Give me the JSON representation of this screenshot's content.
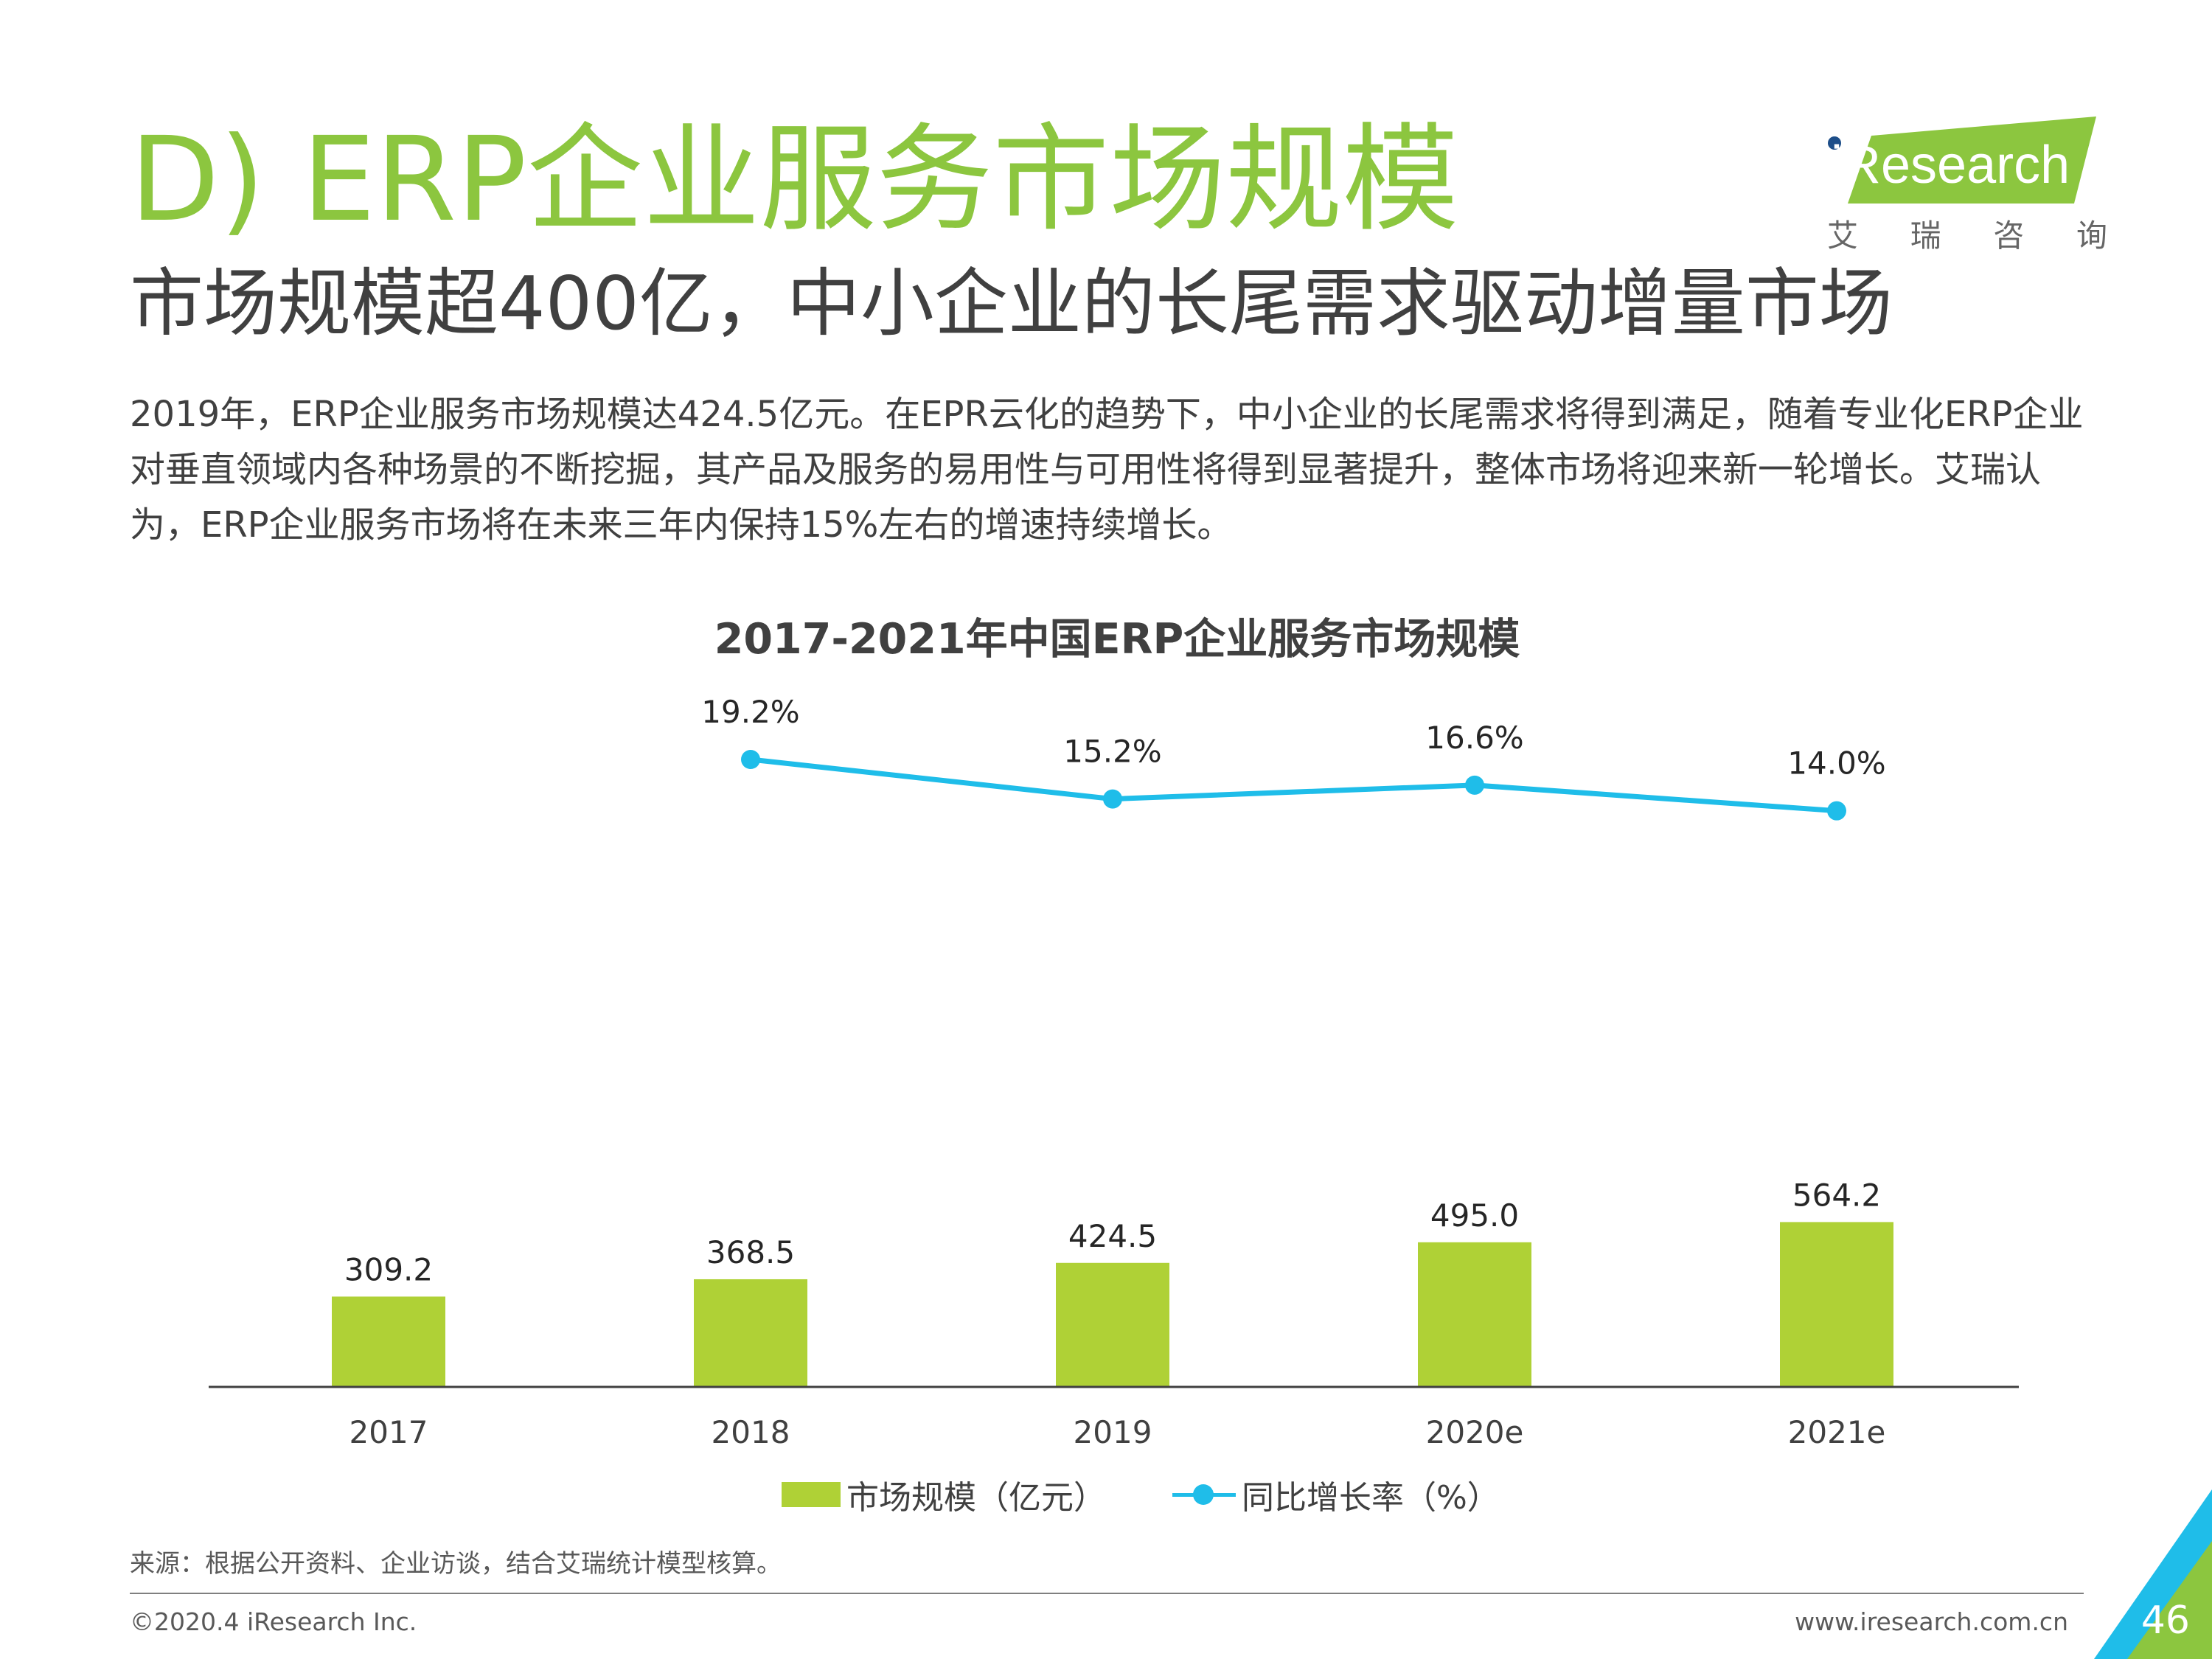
{
  "title": "D) ERP企业服务市场规模",
  "subtitle": "市场规模超400亿，中小企业的长尾需求驱动增量市场",
  "intro": "2019年，ERP企业服务市场规模达424.5亿元。在EPR云化的趋势下，中小企业的长尾需求将得到满足，随着专业化ERP企业对垂直领域内各种场景的不断挖掘，其产品及服务的易用性与可用性将得到显著提升，整体市场将迎来新一轮增长。艾瑞认为，ERP企业服务市场将在未来三年内保持15%左右的增速持续增长。",
  "logo": {
    "text": "iResearch",
    "sub": [
      "艾",
      "瑞",
      "咨",
      "询"
    ],
    "accent": "#8cc63f"
  },
  "chart_data": {
    "type": "bar",
    "title": "2017-2021年中国ERP企业服务市场规模",
    "categories": [
      "2017",
      "2018",
      "2019",
      "2020e",
      "2021e"
    ],
    "series": [
      {
        "name": "市场规模（亿元）",
        "type": "bar",
        "color": "#afd136",
        "values": [
          309.2,
          368.5,
          424.5,
          495.0,
          564.2
        ]
      },
      {
        "name": "同比增长率（%）",
        "type": "line",
        "color": "#1fbde9",
        "values": [
          null,
          19.2,
          15.2,
          16.6,
          14.0
        ]
      }
    ],
    "bar_labels": [
      "309.2",
      "368.5",
      "424.5",
      "495.0",
      "564.2"
    ],
    "line_labels": [
      "19.2%",
      "15.2%",
      "16.6%",
      "14.0%"
    ],
    "legend": "bottom"
  },
  "source": "来源：根据公开资料、企业访谈，结合艾瑞统计模型核算。",
  "footer": {
    "copyright": "©2020.4 iResearch Inc.",
    "website": "www.iresearch.com.cn",
    "page": "46"
  }
}
